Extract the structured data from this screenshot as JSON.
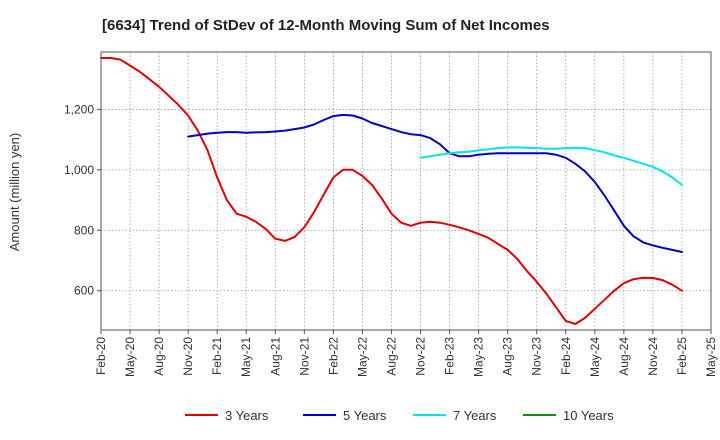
{
  "chart_data": {
    "type": "line",
    "title": "[6634]  Trend of StDev of 12-Month Moving Sum of Net Incomes",
    "ylabel": "Amount (million yen)",
    "xlabel": "",
    "ylim": [
      470,
      1390
    ],
    "yticks": [
      600,
      800,
      1000,
      1200
    ],
    "ytick_labels": [
      "600",
      "800",
      "1,000",
      "1,200"
    ],
    "x_ticks": [
      "Feb-20",
      "May-20",
      "Aug-20",
      "Nov-20",
      "Feb-21",
      "May-21",
      "Aug-21",
      "Nov-21",
      "Feb-22",
      "May-22",
      "Aug-22",
      "Nov-22",
      "Feb-23",
      "May-23",
      "Aug-23",
      "Nov-23",
      "Feb-24",
      "May-24",
      "Aug-24",
      "Nov-24",
      "Feb-25",
      "May-25"
    ],
    "grid": true,
    "legend_position": "bottom",
    "series": [
      {
        "name": "3 Years",
        "color": "#e00000",
        "start_index": 0,
        "values": [
          1370,
          1370,
          1365,
          1345,
          1325,
          1300,
          1275,
          1245,
          1215,
          1180,
          1130,
          1065,
          975,
          900,
          855,
          845,
          828,
          805,
          772,
          765,
          778,
          810,
          860,
          918,
          975,
          1000,
          1000,
          980,
          950,
          905,
          855,
          825,
          815,
          825,
          828,
          825,
          818,
          810,
          800,
          788,
          775,
          755,
          735,
          705,
          665,
          630,
          590,
          545,
          500,
          490,
          510,
          540,
          570,
          600,
          625,
          638,
          643,
          642,
          635,
          620,
          600
        ]
      },
      {
        "name": "5 Years",
        "color": "#0000cc",
        "start_index": 9,
        "values": [
          1110,
          1115,
          1120,
          1123,
          1125,
          1125,
          1123,
          1124,
          1125,
          1127,
          1130,
          1135,
          1140,
          1150,
          1165,
          1178,
          1182,
          1180,
          1170,
          1155,
          1145,
          1135,
          1125,
          1118,
          1115,
          1105,
          1085,
          1055,
          1045,
          1045,
          1050,
          1053,
          1055,
          1055,
          1055,
          1055,
          1055,
          1055,
          1050,
          1040,
          1020,
          995,
          960,
          915,
          865,
          815,
          780,
          760,
          750,
          742,
          735,
          728
        ]
      },
      {
        "name": "7 Years",
        "color": "#00e5e5",
        "start_index": 33,
        "values": [
          1040,
          1045,
          1050,
          1055,
          1058,
          1060,
          1065,
          1068,
          1072,
          1074,
          1075,
          1073,
          1072,
          1070,
          1070,
          1072,
          1073,
          1072,
          1065,
          1058,
          1048,
          1040,
          1030,
          1020,
          1010,
          995,
          975,
          950
        ]
      },
      {
        "name": "10 Years",
        "color": "#1a8a1a",
        "start_index": 0,
        "values": []
      }
    ]
  }
}
